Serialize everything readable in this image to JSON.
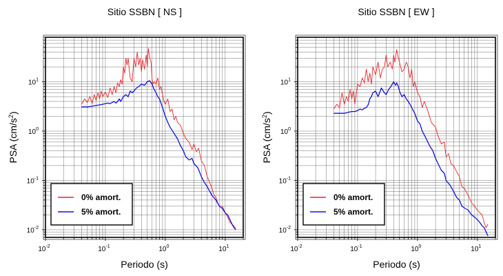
{
  "chart_data": [
    {
      "type": "line",
      "title": "Sitio SSBN [ NS ]",
      "xlabel": "Periodo (s)",
      "ylabel_main": "PSA (cm/s",
      "ylabel_sup": "2",
      "ylabel_close": ")",
      "xscale": "log",
      "yscale": "log",
      "xlim": [
        0.01,
        20
      ],
      "ylim": [
        0.007,
        80
      ],
      "grid": true,
      "legend_position": "bottom-left",
      "x_ticks": [
        {
          "base": "10",
          "exp": "-2"
        },
        {
          "base": "10",
          "exp": "-1"
        },
        {
          "base": "10",
          "exp": "0"
        },
        {
          "base": "10",
          "exp": "1"
        }
      ],
      "y_ticks": [
        {
          "base": "10",
          "exp": "-2"
        },
        {
          "base": "10",
          "exp": "-1"
        },
        {
          "base": "10",
          "exp": "0"
        },
        {
          "base": "10",
          "exp": "1"
        }
      ],
      "series": [
        {
          "name": "0% amort.",
          "color": "#e8242a",
          "x": [
            0.04,
            0.045,
            0.05,
            0.055,
            0.06,
            0.065,
            0.07,
            0.075,
            0.08,
            0.085,
            0.09,
            0.1,
            0.11,
            0.12,
            0.13,
            0.14,
            0.15,
            0.16,
            0.17,
            0.18,
            0.19,
            0.2,
            0.21,
            0.22,
            0.23,
            0.24,
            0.25,
            0.26,
            0.28,
            0.3,
            0.32,
            0.34,
            0.36,
            0.38,
            0.4,
            0.42,
            0.45,
            0.48,
            0.5,
            0.52,
            0.55,
            0.58,
            0.6,
            0.62,
            0.65,
            0.7,
            0.75,
            0.8,
            0.85,
            0.9,
            0.95,
            1.0,
            1.1,
            1.2,
            1.3,
            1.4,
            1.5,
            1.6,
            1.8,
            2.0,
            2.2,
            2.5,
            2.8,
            3.0,
            3.3,
            3.6,
            4.0,
            4.5,
            5.0,
            5.5,
            6.0,
            6.5,
            7.0,
            7.5,
            8.0,
            9.0,
            10.0,
            11.0,
            12.0,
            13.0,
            14.0,
            15.0
          ],
          "y": [
            3.5,
            4.5,
            3.8,
            5.0,
            3.6,
            5.5,
            4.2,
            6.0,
            4.5,
            6.5,
            5.0,
            6.2,
            4.8,
            7.5,
            5.5,
            8.0,
            6.0,
            9.5,
            8.0,
            11.0,
            9.0,
            20.0,
            15.0,
            30.0,
            22.0,
            30.0,
            18.0,
            12.0,
            10.0,
            30.0,
            20.0,
            40.0,
            22.0,
            30.0,
            16.0,
            28.0,
            18.0,
            35.0,
            20.0,
            48.0,
            30.0,
            25.0,
            12.0,
            9.0,
            10.0,
            9.0,
            12.0,
            7.0,
            8.0,
            5.5,
            4.0,
            3.5,
            4.5,
            2.5,
            2.8,
            1.7,
            2.0,
            1.5,
            1.3,
            0.9,
            0.7,
            0.6,
            0.42,
            0.55,
            0.38,
            0.45,
            0.25,
            0.2,
            0.12,
            0.09,
            0.07,
            0.05,
            0.045,
            0.035,
            0.03,
            0.03,
            0.022,
            0.018,
            0.014,
            0.013,
            0.012,
            0.0105
          ]
        },
        {
          "name": "5% amort.",
          "color": "#1010d8",
          "x": [
            0.04,
            0.05,
            0.06,
            0.07,
            0.08,
            0.09,
            0.1,
            0.11,
            0.12,
            0.13,
            0.14,
            0.15,
            0.16,
            0.17,
            0.18,
            0.2,
            0.22,
            0.24,
            0.26,
            0.28,
            0.3,
            0.33,
            0.36,
            0.4,
            0.45,
            0.5,
            0.55,
            0.6,
            0.65,
            0.7,
            0.75,
            0.8,
            0.9,
            1.0,
            1.1,
            1.2,
            1.4,
            1.6,
            1.8,
            2.0,
            2.2,
            2.5,
            2.8,
            3.0,
            3.5,
            4.0,
            4.5,
            5.0,
            5.5,
            6.0,
            7.0,
            8.0,
            9.0,
            10.0,
            11.0,
            12.0,
            13.0,
            14.0,
            15.0
          ],
          "y": [
            3.1,
            3.1,
            3.2,
            3.3,
            3.4,
            3.5,
            3.6,
            3.7,
            3.6,
            3.8,
            4.0,
            3.7,
            4.0,
            4.5,
            4.0,
            5.0,
            5.5,
            5.0,
            6.5,
            6.0,
            6.5,
            7.5,
            8.0,
            9.0,
            8.5,
            10.0,
            10.5,
            9.0,
            7.0,
            6.0,
            5.0,
            4.5,
            3.0,
            2.0,
            1.5,
            1.2,
            0.9,
            0.7,
            0.5,
            0.4,
            0.3,
            0.26,
            0.28,
            0.22,
            0.18,
            0.12,
            0.09,
            0.075,
            0.06,
            0.05,
            0.04,
            0.03,
            0.027,
            0.022,
            0.02,
            0.016,
            0.013,
            0.011,
            0.01
          ]
        }
      ]
    },
    {
      "type": "line",
      "title": "Sitio SSBN [ EW ]",
      "xlabel": "Periodo (s)",
      "ylabel_main": "PSA (cm/s",
      "ylabel_sup": "2",
      "ylabel_close": ")",
      "xscale": "log",
      "yscale": "log",
      "xlim": [
        0.01,
        20
      ],
      "ylim": [
        0.007,
        80
      ],
      "grid": true,
      "legend_position": "bottom-left",
      "x_ticks": [
        {
          "base": "10",
          "exp": "-2"
        },
        {
          "base": "10",
          "exp": "-1"
        },
        {
          "base": "10",
          "exp": "0"
        },
        {
          "base": "10",
          "exp": "1"
        }
      ],
      "y_ticks": [
        {
          "base": "10",
          "exp": "-2"
        },
        {
          "base": "10",
          "exp": "-1"
        },
        {
          "base": "10",
          "exp": "0"
        },
        {
          "base": "10",
          "exp": "1"
        }
      ],
      "series": [
        {
          "name": "0% amort.",
          "color": "#e8242a",
          "x": [
            0.04,
            0.045,
            0.05,
            0.055,
            0.06,
            0.065,
            0.07,
            0.075,
            0.08,
            0.085,
            0.09,
            0.1,
            0.11,
            0.12,
            0.13,
            0.14,
            0.15,
            0.16,
            0.17,
            0.18,
            0.2,
            0.22,
            0.24,
            0.26,
            0.28,
            0.3,
            0.32,
            0.35,
            0.38,
            0.4,
            0.42,
            0.45,
            0.48,
            0.5,
            0.55,
            0.6,
            0.65,
            0.7,
            0.75,
            0.8,
            0.85,
            0.9,
            1.0,
            1.1,
            1.2,
            1.3,
            1.5,
            1.7,
            2.0,
            2.2,
            2.5,
            2.8,
            3.0,
            3.3,
            3.6,
            4.0,
            4.5,
            5.0,
            5.5,
            6.0,
            7.0,
            8.0,
            9.0,
            10.0,
            11.0,
            12.0,
            13.0,
            14.0,
            15.0
          ],
          "y": [
            2.8,
            3.5,
            3.0,
            6.0,
            3.5,
            5.0,
            4.0,
            7.0,
            4.5,
            6.5,
            3.5,
            9.0,
            8.0,
            12.0,
            9.5,
            18.0,
            10.0,
            15.0,
            9.0,
            20.0,
            14.0,
            25.0,
            12.0,
            18.0,
            20.0,
            35.0,
            20.0,
            25.0,
            18.0,
            35.0,
            25.0,
            45.0,
            30.0,
            25.0,
            16.0,
            18.0,
            25.0,
            20.0,
            12.0,
            18.0,
            8.0,
            10.0,
            6.0,
            5.0,
            3.0,
            4.0,
            2.5,
            1.5,
            1.2,
            0.8,
            0.55,
            0.6,
            0.3,
            0.35,
            0.22,
            0.2,
            0.15,
            0.12,
            0.075,
            0.07,
            0.05,
            0.035,
            0.03,
            0.025,
            0.022,
            0.02,
            0.014,
            0.011,
            0.013
          ]
        },
        {
          "name": "5% amort.",
          "color": "#1010d8",
          "x": [
            0.04,
            0.05,
            0.06,
            0.07,
            0.08,
            0.09,
            0.1,
            0.11,
            0.12,
            0.13,
            0.14,
            0.15,
            0.16,
            0.17,
            0.18,
            0.2,
            0.22,
            0.25,
            0.28,
            0.3,
            0.33,
            0.36,
            0.4,
            0.43,
            0.45,
            0.48,
            0.5,
            0.55,
            0.6,
            0.65,
            0.7,
            0.75,
            0.8,
            0.9,
            1.0,
            1.1,
            1.2,
            1.4,
            1.6,
            1.8,
            2.0,
            2.2,
            2.5,
            2.8,
            3.0,
            3.5,
            4.0,
            4.5,
            5.0,
            5.5,
            6.0,
            7.0,
            8.0,
            9.0,
            10.0,
            11.0,
            12.0,
            13.0,
            14.0,
            15.0
          ],
          "y": [
            2.3,
            2.3,
            2.3,
            2.4,
            2.5,
            2.5,
            2.6,
            2.8,
            2.7,
            2.9,
            3.0,
            3.4,
            4.5,
            5.0,
            6.0,
            6.5,
            5.0,
            7.5,
            6.0,
            5.5,
            7.0,
            8.0,
            10.0,
            8.5,
            9.5,
            8.0,
            6.5,
            5.0,
            5.5,
            4.5,
            4.0,
            3.5,
            3.0,
            2.3,
            1.6,
            1.4,
            1.0,
            0.7,
            0.5,
            0.4,
            0.28,
            0.22,
            0.16,
            0.14,
            0.1,
            0.08,
            0.06,
            0.045,
            0.04,
            0.03,
            0.028,
            0.025,
            0.02,
            0.018,
            0.016,
            0.014,
            0.012,
            0.011,
            0.009,
            0.0075
          ]
        }
      ]
    }
  ]
}
